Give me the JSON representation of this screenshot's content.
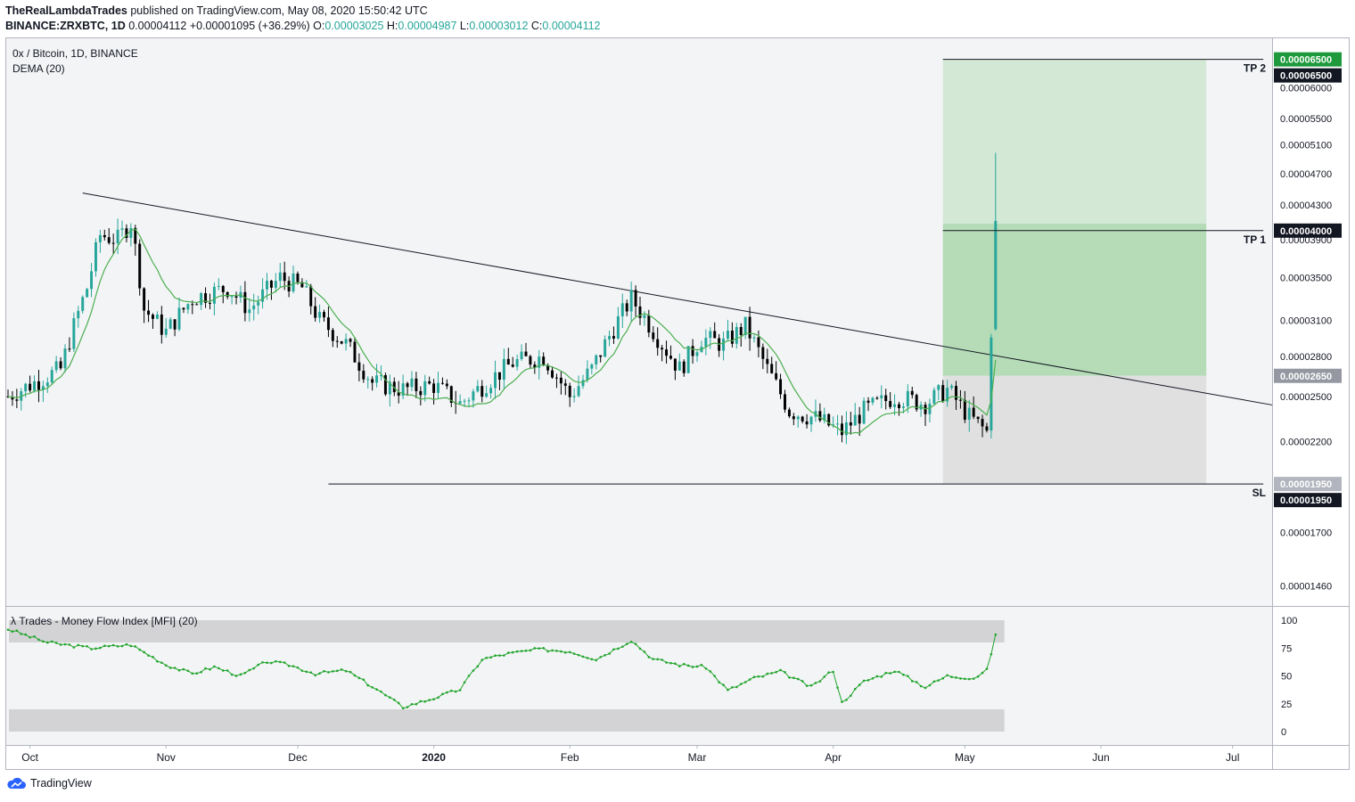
{
  "header": {
    "author": "TheRealLambdaTrades",
    "published_text": "published on TradingView.com, May 08, 2020 15:50:42 UTC",
    "symbol": "BINANCE:ZRXBTC, 1D",
    "last": "0.00004112",
    "change": "+0.00001095 (+36.29%)",
    "o_label": "O:",
    "o_value": "0.00003025",
    "h_label": "H:",
    "h_value": "0.00004987",
    "l_label": "L:",
    "l_value": "0.00003012",
    "c_label": "C:",
    "c_value": "0.00004112"
  },
  "main_pane": {
    "title": "0x / Bitcoin, 1D, BINANCE",
    "indicator": "DEMA (20)"
  },
  "mfi_pane": {
    "title": "λ Trades - Money Flow Index [MFI] (20)"
  },
  "footer": {
    "logo_text": "TradingView"
  },
  "colors": {
    "up": "#26a69a",
    "down": "#000000",
    "dema": "#4caf50",
    "mfi": "#22a52c",
    "profit_zone": "#c8e6c9",
    "profit_zone_strong": "#a5d6a7",
    "loss_zone": "#e0e0e0",
    "tp_badge": "#1e9a3c",
    "price_badge": "#131722"
  },
  "chart_data": [
    {
      "type": "candlestick",
      "title": "0x / Bitcoin, 1D, BINANCE",
      "x_tick_labels": [
        "Oct",
        "Nov",
        "Dec",
        "2020",
        "Feb",
        "Mar",
        "Apr",
        "May",
        "Jun",
        "Jul"
      ],
      "y_tick_labels": [
        "0.00006000",
        "0.00005500",
        "0.00005100",
        "0.00004700",
        "0.00004300",
        "0.00003900",
        "0.00003500",
        "0.00003100",
        "0.00002800",
        "0.00002500",
        "0.00002200",
        "0.00001700",
        "0.00001460"
      ],
      "ylim": [
        1.38e-05,
        6.9e-05
      ],
      "x_range": [
        "2019-09-26",
        "2020-07-10"
      ],
      "last_candle": {
        "date": "2020-05-08",
        "open": 3.025e-05,
        "high": 4.987e-05,
        "low": 3.012e-05,
        "close": 4.112e-05
      },
      "trendline": {
        "start": [
          "2019-10-13",
          4.45e-05
        ],
        "end": [
          "2020-07-10",
          2.44e-05
        ]
      },
      "levels": [
        {
          "label": "TP 2",
          "price": "0.00006500",
          "value": 6.5e-05
        },
        {
          "label": "TP 1",
          "price": "0.00004000",
          "value": 4e-05
        },
        {
          "label": "",
          "price": "0.00002650",
          "value": 2.65e-05
        },
        {
          "label": "SL",
          "price": "0.00001950",
          "value": 1.95e-05
        }
      ],
      "anchors": [
        [
          "2019-09-26",
          2.5e-05
        ],
        [
          "2019-10-08",
          2.7e-05
        ],
        [
          "2019-10-14",
          3.4e-05
        ],
        [
          "2019-10-17",
          3.95e-05
        ],
        [
          "2019-10-21",
          3.9e-05
        ],
        [
          "2019-10-24",
          4.1e-05
        ],
        [
          "2019-10-27",
          3.2e-05
        ],
        [
          "2019-11-01",
          3e-05
        ],
        [
          "2019-11-07",
          3.3e-05
        ],
        [
          "2019-11-15",
          3.4e-05
        ],
        [
          "2019-11-20",
          3.2e-05
        ],
        [
          "2019-11-27",
          3.5e-05
        ],
        [
          "2019-12-02",
          3.4e-05
        ],
        [
          "2019-12-06",
          3.1e-05
        ],
        [
          "2019-12-12",
          2.9e-05
        ],
        [
          "2019-12-18",
          2.6e-05
        ],
        [
          "2019-12-25",
          2.55e-05
        ],
        [
          "2020-01-01",
          2.58e-05
        ],
        [
          "2020-01-07",
          2.45e-05
        ],
        [
          "2020-01-13",
          2.6e-05
        ],
        [
          "2020-01-19",
          2.75e-05
        ],
        [
          "2020-01-26",
          2.8e-05
        ],
        [
          "2020-02-01",
          2.5e-05
        ],
        [
          "2020-02-06",
          2.7e-05
        ],
        [
          "2020-02-15",
          3.3e-05
        ],
        [
          "2020-02-22",
          2.9e-05
        ],
        [
          "2020-02-26",
          2.7e-05
        ],
        [
          "2020-03-02",
          2.95e-05
        ],
        [
          "2020-03-07",
          2.9e-05
        ],
        [
          "2020-03-12",
          3.05e-05
        ],
        [
          "2020-03-17",
          2.7e-05
        ],
        [
          "2020-03-22",
          2.4e-05
        ],
        [
          "2020-03-28",
          2.35e-05
        ],
        [
          "2020-04-03",
          2.26e-05
        ],
        [
          "2020-04-08",
          2.4e-05
        ],
        [
          "2020-04-15",
          2.5e-05
        ],
        [
          "2020-04-22",
          2.45e-05
        ],
        [
          "2020-04-27",
          2.55e-05
        ],
        [
          "2020-05-02",
          2.36e-05
        ],
        [
          "2020-05-06",
          2.26e-05
        ],
        [
          "2020-05-07",
          3.02e-05
        ],
        [
          "2020-05-08",
          4.11e-05
        ]
      ]
    },
    {
      "type": "line",
      "title": "λ Trades - Money Flow Index [MFI] (20)",
      "y_tick_labels": [
        "100",
        "75",
        "50",
        "25",
        "0"
      ],
      "ylim": [
        0,
        100
      ],
      "bands": [
        [
          80,
          100
        ],
        [
          0,
          20
        ]
      ],
      "series": [
        {
          "values": [
            [
              "2019-09-26",
              92
            ],
            [
              "2019-10-05",
              80
            ],
            [
              "2019-10-15",
              75
            ],
            [
              "2019-10-24",
              78
            ],
            [
              "2019-11-01",
              60
            ],
            [
              "2019-11-07",
              52
            ],
            [
              "2019-11-12",
              58
            ],
            [
              "2019-11-18",
              50
            ],
            [
              "2019-11-24",
              63
            ],
            [
              "2019-11-29",
              60
            ],
            [
              "2019-12-05",
              52
            ],
            [
              "2019-12-12",
              55
            ],
            [
              "2019-12-19",
              38
            ],
            [
              "2019-12-25",
              22
            ],
            [
              "2020-01-01",
              30
            ],
            [
              "2020-01-07",
              38
            ],
            [
              "2020-01-12",
              65
            ],
            [
              "2020-01-18",
              70
            ],
            [
              "2020-01-25",
              74
            ],
            [
              "2020-02-01",
              72
            ],
            [
              "2020-02-07",
              65
            ],
            [
              "2020-02-15",
              82
            ],
            [
              "2020-02-20",
              65
            ],
            [
              "2020-02-26",
              60
            ],
            [
              "2020-03-03",
              58
            ],
            [
              "2020-03-08",
              37
            ],
            [
              "2020-03-14",
              48
            ],
            [
              "2020-03-20",
              54
            ],
            [
              "2020-03-27",
              40
            ],
            [
              "2020-04-01",
              55
            ],
            [
              "2020-04-03",
              26
            ],
            [
              "2020-04-08",
              45
            ],
            [
              "2020-04-15",
              55
            ],
            [
              "2020-04-22",
              40
            ],
            [
              "2020-04-27",
              50
            ],
            [
              "2020-05-03",
              48
            ],
            [
              "2020-05-06",
              55
            ],
            [
              "2020-05-08",
              86
            ]
          ]
        }
      ]
    },
    {
      "type": "line",
      "title": "DEMA (20)",
      "series": [
        {
          "values": []
        }
      ]
    }
  ]
}
